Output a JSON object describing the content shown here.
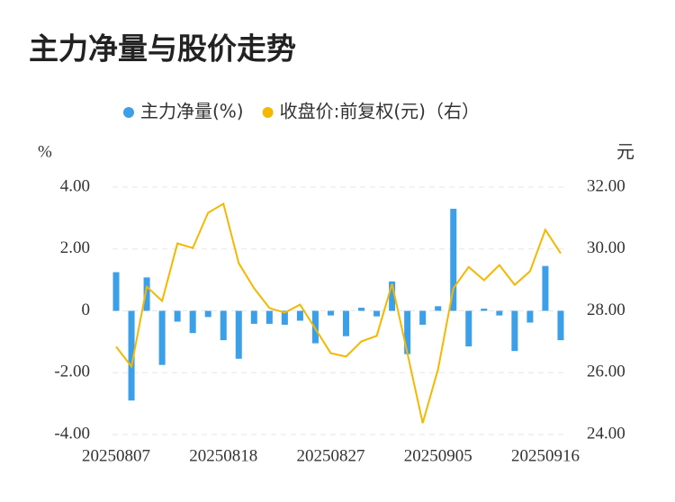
{
  "chart_data": {
    "type": "bar_line",
    "title": "主力净量与股价走势",
    "y_unit": "%",
    "y2_unit": "元",
    "categories": [
      "20250807",
      null,
      null,
      null,
      null,
      null,
      null,
      "20250818",
      null,
      null,
      null,
      null,
      null,
      null,
      "20250827",
      null,
      null,
      null,
      null,
      null,
      null,
      "20250905",
      null,
      null,
      null,
      null,
      null,
      null,
      "20250916",
      null
    ],
    "series": [
      {
        "name": "主力净量(%)",
        "type": "bar",
        "color": "#3ba0e8",
        "axis": "y",
        "values": [
          1.25,
          -2.9,
          1.08,
          -1.75,
          -0.35,
          -0.72,
          -0.2,
          -0.95,
          -1.55,
          -0.42,
          -0.42,
          -0.45,
          -0.32,
          -1.05,
          -0.15,
          -0.82,
          0.1,
          -0.18,
          0.95,
          -1.4,
          -0.45,
          0.15,
          3.3,
          -1.15,
          0.07,
          -0.15,
          -1.3,
          -0.38,
          1.45,
          -0.95
        ]
      },
      {
        "name": "收盘价:前复权(元)（右）",
        "type": "line",
        "color": "#f5b800",
        "axis": "y2",
        "values": [
          26.84,
          26.2,
          28.78,
          28.32,
          30.18,
          30.03,
          31.17,
          31.46,
          29.54,
          28.73,
          28.09,
          27.94,
          28.2,
          27.42,
          26.63,
          26.52,
          27.01,
          27.19,
          28.87,
          26.63,
          24.37,
          26.11,
          28.73,
          29.42,
          28.99,
          29.48,
          28.84,
          29.28,
          30.62,
          29.86
        ]
      }
    ],
    "ylim": [
      -4,
      4
    ],
    "yticks": [
      {
        "value": 4,
        "label": "4.00"
      },
      {
        "value": 2,
        "label": "2.00"
      },
      0,
      {
        "value": -2,
        "label": "-2.00"
      },
      {
        "value": -4,
        "label": "-4.00"
      }
    ],
    "y2lim": [
      24,
      32
    ],
    "y2ticks": [
      {
        "value": 32,
        "label": "32.00"
      },
      {
        "value": 30,
        "label": "30.00"
      },
      {
        "value": 28,
        "label": "28.00"
      },
      {
        "value": 26,
        "label": "26.00"
      },
      {
        "value": 24,
        "label": "24.00"
      }
    ],
    "grid": true,
    "legend": "top"
  }
}
